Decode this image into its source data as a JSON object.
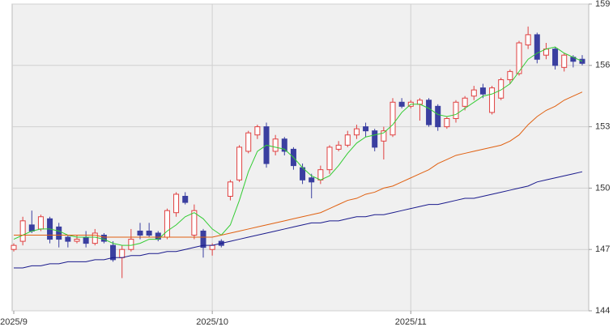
{
  "chart_data": {
    "type": "candlestick",
    "categories": [
      "2025/9",
      null,
      null,
      null,
      null,
      null,
      null,
      null,
      null,
      null,
      null,
      null,
      null,
      null,
      null,
      null,
      null,
      null,
      null,
      null,
      null,
      null,
      "2025/10",
      null,
      null,
      null,
      null,
      null,
      null,
      null,
      null,
      null,
      null,
      null,
      null,
      null,
      null,
      null,
      null,
      null,
      null,
      null,
      null,
      null,
      "2025/11",
      null,
      null,
      null,
      null,
      null,
      null,
      null,
      null,
      null,
      null,
      null,
      null,
      null,
      null,
      null,
      null,
      null,
      null,
      null
    ],
    "candles": {
      "open": [
        147.0,
        147.4,
        148.2,
        148.0,
        148.5,
        148.1,
        147.6,
        147.4,
        147.6,
        147.3,
        147.7,
        147.2,
        146.6,
        147.0,
        147.9,
        147.9,
        147.8,
        147.6,
        148.8,
        149.6,
        147.7,
        147.9,
        147.0,
        147.4,
        149.6,
        150.4,
        151.8,
        152.6,
        153.0,
        151.8,
        152.4,
        151.9,
        151.0,
        150.5,
        150.4,
        150.9,
        151.9,
        152.1,
        152.6,
        153.0,
        152.8,
        152.3,
        152.6,
        154.2,
        154.0,
        154.1,
        154.3,
        154.0,
        153.0,
        153.4,
        154.0,
        154.5,
        154.9,
        153.7,
        154.4,
        155.3,
        155.6,
        157.0,
        157.5,
        156.5,
        156.8,
        155.9,
        156.4,
        156.3
      ],
      "high": [
        147.3,
        148.6,
        148.9,
        148.7,
        148.6,
        148.3,
        147.7,
        147.7,
        147.9,
        148.0,
        147.8,
        147.4,
        147.2,
        148.0,
        148.3,
        148.3,
        147.9,
        149.0,
        149.8,
        149.8,
        149.2,
        148.0,
        147.3,
        147.5,
        150.4,
        152.1,
        152.8,
        153.1,
        153.2,
        152.6,
        152.5,
        152.0,
        151.2,
        150.7,
        151.1,
        152.1,
        152.3,
        152.8,
        153.1,
        153.2,
        152.9,
        153.0,
        154.4,
        154.4,
        154.3,
        154.4,
        154.4,
        154.1,
        153.5,
        154.3,
        154.5,
        155.0,
        155.1,
        155.0,
        155.4,
        155.8,
        157.2,
        157.9,
        157.6,
        157.1,
        156.9,
        156.6,
        156.5,
        156.5
      ],
      "low": [
        146.9,
        147.2,
        147.8,
        147.9,
        147.3,
        147.1,
        147.1,
        147.3,
        147.1,
        147.2,
        147.3,
        146.4,
        145.6,
        146.9,
        147.5,
        147.6,
        147.4,
        147.5,
        148.6,
        149.2,
        147.5,
        146.6,
        146.7,
        147.1,
        149.4,
        150.3,
        151.7,
        152.4,
        151.0,
        151.6,
        151.6,
        150.9,
        150.2,
        149.5,
        150.2,
        150.7,
        151.8,
        152.0,
        152.4,
        152.5,
        151.8,
        151.4,
        152.5,
        153.9,
        153.9,
        153.3,
        153.0,
        152.8,
        152.9,
        153.2,
        153.8,
        154.3,
        154.4,
        153.6,
        154.3,
        155.1,
        155.5,
        156.8,
        156.1,
        156.3,
        155.8,
        155.7,
        155.9,
        156.0
      ],
      "close": [
        147.2,
        148.4,
        147.9,
        148.6,
        147.5,
        147.5,
        147.4,
        147.5,
        147.3,
        147.8,
        147.4,
        146.5,
        147.0,
        147.5,
        147.7,
        147.7,
        147.5,
        148.9,
        149.7,
        149.3,
        148.9,
        147.1,
        147.2,
        147.2,
        150.3,
        152.0,
        152.7,
        153.0,
        151.2,
        152.4,
        151.8,
        151.1,
        150.4,
        150.3,
        150.9,
        152.0,
        152.1,
        152.6,
        152.9,
        152.8,
        152.0,
        152.8,
        154.2,
        154.0,
        154.2,
        154.3,
        153.1,
        153.0,
        153.4,
        154.2,
        154.4,
        154.8,
        154.6,
        154.9,
        155.3,
        155.7,
        157.1,
        157.5,
        156.3,
        156.8,
        156.0,
        156.5,
        156.2,
        156.1
      ],
      "up_color": "#e04040",
      "down_color": "#3a3fa0"
    },
    "series": [
      {
        "color": "#33cc33",
        "values": [
          147.5,
          147.7,
          147.9,
          148.0,
          148.0,
          147.9,
          147.7,
          147.6,
          147.6,
          147.6,
          147.5,
          147.3,
          147.2,
          147.2,
          147.3,
          147.5,
          147.5,
          147.9,
          148.2,
          148.6,
          148.8,
          148.5,
          148.0,
          147.7,
          148.2,
          149.4,
          150.8,
          151.8,
          152.1,
          152.0,
          151.9,
          151.5,
          151.0,
          150.6,
          150.4,
          150.6,
          151.1,
          151.7,
          152.2,
          152.5,
          152.6,
          152.7,
          153.1,
          153.7,
          154.1,
          154.1,
          153.9,
          153.6,
          153.5,
          153.6,
          153.9,
          154.2,
          154.5,
          154.6,
          154.8,
          155.1,
          155.7,
          156.3,
          156.6,
          156.8,
          156.9,
          156.6,
          156.4,
          156.2
        ]
      },
      {
        "color": "#e06010",
        "values": [
          147.7,
          147.7,
          147.7,
          147.7,
          147.7,
          147.7,
          147.7,
          147.7,
          147.7,
          147.7,
          147.6,
          147.6,
          147.6,
          147.6,
          147.6,
          147.6,
          147.6,
          147.6,
          147.6,
          147.6,
          147.6,
          147.6,
          147.6,
          147.7,
          147.8,
          147.9,
          148.0,
          148.1,
          148.2,
          148.3,
          148.4,
          148.5,
          148.6,
          148.7,
          148.8,
          149.0,
          149.2,
          149.4,
          149.5,
          149.7,
          149.8,
          150.0,
          150.1,
          150.3,
          150.5,
          150.7,
          150.9,
          151.2,
          151.4,
          151.6,
          151.7,
          151.8,
          151.9,
          152.0,
          152.1,
          152.3,
          152.6,
          153.1,
          153.5,
          153.8,
          154.0,
          154.3,
          154.5,
          154.7
        ]
      },
      {
        "color": "#1a1a8c",
        "values": [
          146.1,
          146.1,
          146.2,
          146.2,
          146.3,
          146.3,
          146.4,
          146.4,
          146.4,
          146.5,
          146.5,
          146.6,
          146.6,
          146.7,
          146.7,
          146.8,
          146.8,
          146.9,
          146.9,
          147.0,
          147.1,
          147.2,
          147.2,
          147.3,
          147.4,
          147.5,
          147.6,
          147.7,
          147.8,
          147.9,
          148.0,
          148.1,
          148.2,
          148.3,
          148.3,
          148.4,
          148.4,
          148.5,
          148.6,
          148.6,
          148.7,
          148.7,
          148.8,
          148.9,
          149.0,
          149.1,
          149.2,
          149.2,
          149.3,
          149.4,
          149.5,
          149.5,
          149.6,
          149.7,
          149.8,
          149.9,
          150.0,
          150.1,
          150.3,
          150.4,
          150.5,
          150.6,
          150.7,
          150.8
        ]
      }
    ],
    "ylim": [
      144,
      159
    ],
    "yticks": [
      144,
      147,
      150,
      153,
      156,
      159
    ],
    "grid": true
  }
}
